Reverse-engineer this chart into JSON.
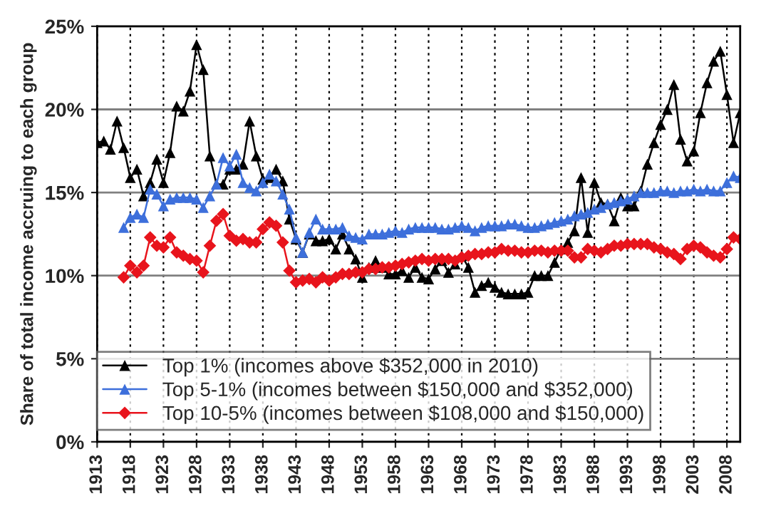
{
  "chart_data": {
    "type": "line",
    "ylabel": "Share of total income accruing to each group",
    "x": [
      1913,
      1914,
      1915,
      1916,
      1917,
      1918,
      1919,
      1920,
      1921,
      1922,
      1923,
      1924,
      1925,
      1926,
      1927,
      1928,
      1929,
      1930,
      1931,
      1932,
      1933,
      1934,
      1935,
      1936,
      1937,
      1938,
      1939,
      1940,
      1941,
      1942,
      1943,
      1944,
      1945,
      1946,
      1947,
      1948,
      1949,
      1950,
      1951,
      1952,
      1953,
      1954,
      1955,
      1956,
      1957,
      1958,
      1959,
      1960,
      1961,
      1962,
      1963,
      1964,
      1965,
      1966,
      1967,
      1968,
      1969,
      1970,
      1971,
      1972,
      1973,
      1974,
      1975,
      1976,
      1977,
      1978,
      1979,
      1980,
      1981,
      1982,
      1983,
      1984,
      1985,
      1986,
      1987,
      1988,
      1989,
      1990,
      1991,
      1992,
      1993,
      1994,
      1995,
      1996,
      1997,
      1998,
      1999,
      2000,
      2001,
      2002,
      2003,
      2004,
      2005,
      2006,
      2007,
      2008,
      2009,
      2010
    ],
    "series": [
      {
        "name": "Top 1% (incomes above $352,000 in 2010)",
        "color": "#000000",
        "marker": "triangle",
        "values": [
          18.0,
          18.1,
          17.6,
          19.3,
          17.7,
          15.9,
          16.4,
          14.8,
          15.6,
          17.0,
          15.6,
          17.4,
          20.2,
          19.9,
          21.1,
          23.9,
          22.4,
          17.2,
          15.5,
          15.5,
          16.4,
          16.4,
          16.7,
          19.3,
          17.2,
          15.8,
          15.9,
          16.4,
          15.7,
          13.4,
          12.2,
          11.4,
          12.5,
          12.1,
          12.1,
          12.2,
          11.6,
          12.5,
          11.6,
          11.0,
          9.9,
          10.5,
          10.9,
          10.5,
          10.1,
          10.1,
          10.3,
          9.9,
          10.5,
          9.9,
          9.8,
          10.4,
          10.9,
          10.2,
          10.7,
          11.2,
          10.5,
          9.0,
          9.4,
          9.6,
          9.3,
          9.0,
          8.9,
          8.9,
          8.9,
          9.0,
          10.0,
          10.0,
          10.0,
          10.8,
          11.6,
          12.0,
          12.7,
          15.9,
          12.6,
          15.6,
          14.4,
          14.3,
          13.3,
          14.7,
          14.2,
          14.2,
          15.1,
          16.7,
          18.0,
          19.1,
          20.0,
          21.5,
          18.2,
          16.9,
          17.5,
          19.8,
          21.6,
          22.9,
          23.5,
          20.9,
          18.0,
          19.8
        ]
      },
      {
        "name": "Top 5-1% (incomes between $150,000 and $352,000)",
        "color": "#3d6fdb",
        "marker": "triangle",
        "values": [
          null,
          null,
          null,
          null,
          12.9,
          13.5,
          13.7,
          13.5,
          15.2,
          14.9,
          14.2,
          14.6,
          14.7,
          14.7,
          14.7,
          14.6,
          14.1,
          14.8,
          15.5,
          17.1,
          16.6,
          17.3,
          15.6,
          15.3,
          15.1,
          15.6,
          16.1,
          15.7,
          14.9,
          14.0,
          12.3,
          11.4,
          12.6,
          13.4,
          12.8,
          12.8,
          12.8,
          12.9,
          12.4,
          12.3,
          12.2,
          12.5,
          12.5,
          12.5,
          12.6,
          12.7,
          12.6,
          12.8,
          12.9,
          12.9,
          12.9,
          12.9,
          12.8,
          12.8,
          12.9,
          13.0,
          12.9,
          12.7,
          12.9,
          13.0,
          13.0,
          13.0,
          13.1,
          13.1,
          13.0,
          12.9,
          12.9,
          13.0,
          13.1,
          13.2,
          13.3,
          13.4,
          13.6,
          13.7,
          13.8,
          14.0,
          14.1,
          14.3,
          14.4,
          14.5,
          14.6,
          14.8,
          15.0,
          15.0,
          15.0,
          15.1,
          15.1,
          15.0,
          15.1,
          15.1,
          15.2,
          15.1,
          15.2,
          15.1,
          15.1,
          15.6,
          16.0,
          15.9
        ]
      },
      {
        "name": "Top 10-5% (incomes between $108,000 and $150,000)",
        "color": "#e8141c",
        "marker": "diamond",
        "values": [
          null,
          null,
          null,
          null,
          9.9,
          10.6,
          10.2,
          10.6,
          12.3,
          11.8,
          11.7,
          12.3,
          11.4,
          11.2,
          11.0,
          10.9,
          10.2,
          11.8,
          13.3,
          13.7,
          12.4,
          12.1,
          12.2,
          12.0,
          12.0,
          12.8,
          13.2,
          13.0,
          12.0,
          10.3,
          9.6,
          9.7,
          9.8,
          9.6,
          9.9,
          9.7,
          9.9,
          10.1,
          10.1,
          10.2,
          10.2,
          10.4,
          10.4,
          10.5,
          10.5,
          10.6,
          10.7,
          10.8,
          10.9,
          11.0,
          10.9,
          11.0,
          11.0,
          11.0,
          10.9,
          11.1,
          11.2,
          11.3,
          11.3,
          11.4,
          11.4,
          11.6,
          11.5,
          11.5,
          11.4,
          11.4,
          11.5,
          11.5,
          11.4,
          11.5,
          11.5,
          11.5,
          11.1,
          11.1,
          11.6,
          11.5,
          11.4,
          11.6,
          11.8,
          11.8,
          11.9,
          11.9,
          11.9,
          11.9,
          11.7,
          11.6,
          11.4,
          11.3,
          11.0,
          11.6,
          11.8,
          11.7,
          11.4,
          11.2,
          11.1,
          11.6,
          12.3,
          12.2
        ]
      }
    ],
    "xlim": [
      1913,
      2010
    ],
    "xticks": [
      1913,
      1918,
      1923,
      1928,
      1933,
      1938,
      1943,
      1948,
      1953,
      1958,
      1963,
      1968,
      1973,
      1978,
      1983,
      1988,
      1993,
      1998,
      2003,
      2008
    ],
    "ylim": [
      0,
      25
    ],
    "yticks": [
      {
        "value": 0,
        "label": "0%"
      },
      {
        "value": 5,
        "label": "5%"
      },
      {
        "value": 10,
        "label": "10%"
      },
      {
        "value": 15,
        "label": "15%"
      },
      {
        "value": 20,
        "label": "20%"
      },
      {
        "value": 25,
        "label": "25%"
      }
    ],
    "grid": true,
    "legend": "bottom",
    "line_style": "solid"
  }
}
